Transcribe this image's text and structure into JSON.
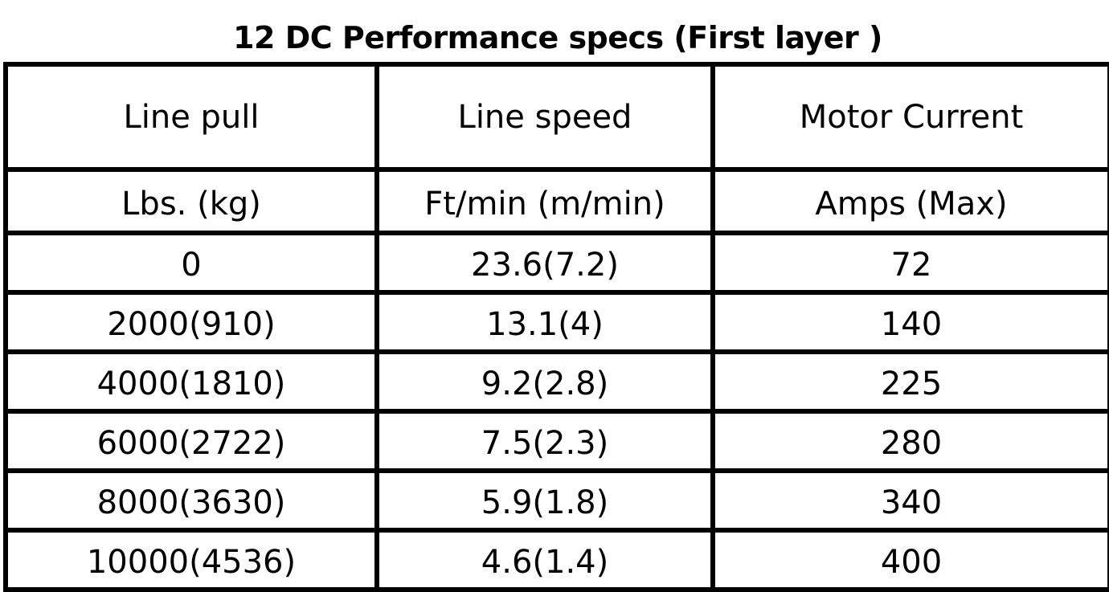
{
  "title": "12 DC Performance specs (First layer )",
  "table": {
    "headers": [
      "Line pull",
      "Line speed",
      "Motor Current"
    ],
    "units": [
      "Lbs. (kg)",
      "Ft/min (m/min)",
      "Amps (Max)"
    ],
    "rows": [
      [
        "0",
        "23.6(7.2)",
        "72"
      ],
      [
        "2000(910)",
        "13.1(4)",
        "140"
      ],
      [
        "4000(1810)",
        "9.2(2.8)",
        "225"
      ],
      [
        "6000(2722)",
        "7.5(2.3)",
        "280"
      ],
      [
        "8000(3630)",
        "5.9(1.8)",
        "340"
      ],
      [
        "10000(4536)",
        "4.6(1.4)",
        "400"
      ]
    ]
  }
}
